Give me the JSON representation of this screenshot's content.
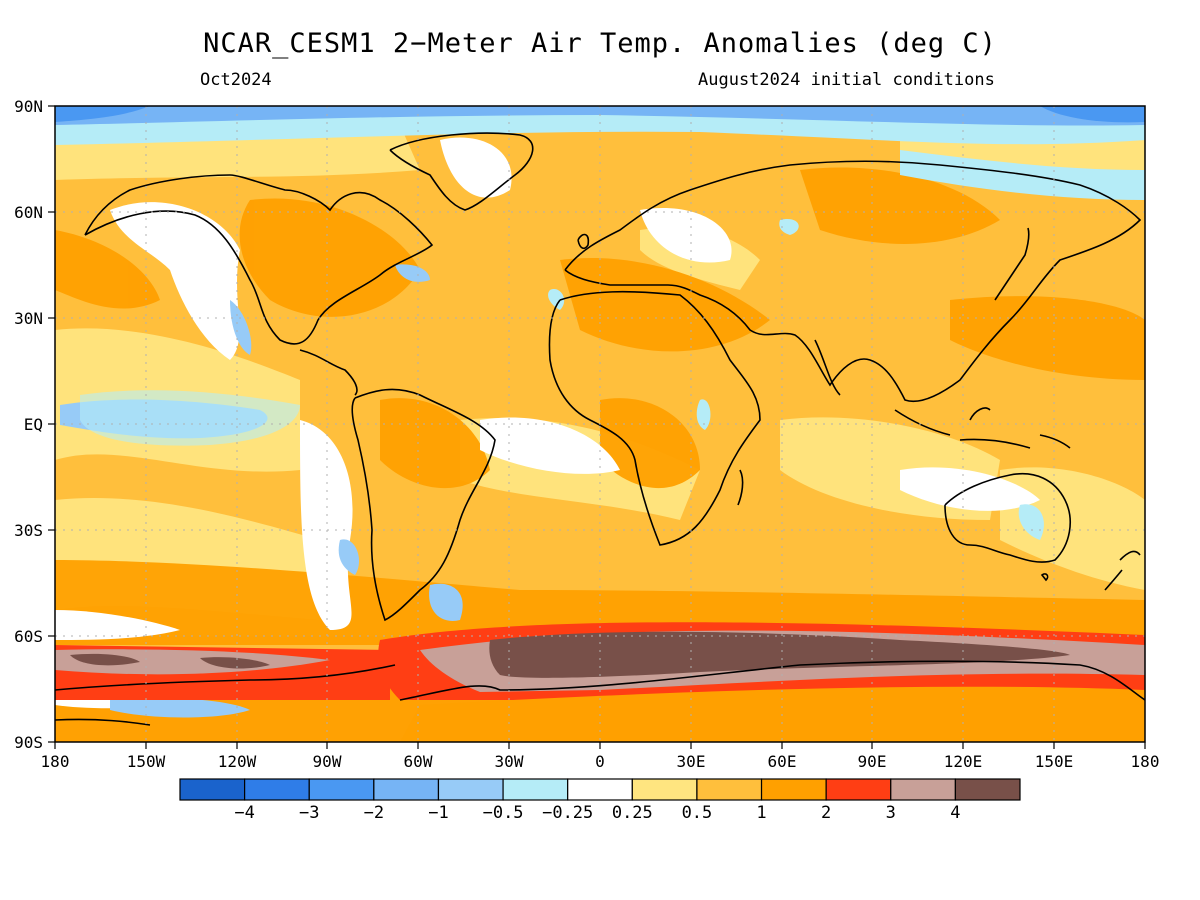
{
  "title": "NCAR_CESM1 2−Meter Air Temp. Anomalies (deg C)",
  "valid_month": "Oct2024",
  "initial_conditions": "August2024 initial conditions",
  "lat_labels": [
    "90N",
    "60N",
    "30N",
    "EQ",
    "30S",
    "60S",
    "90S"
  ],
  "lon_labels": [
    "180",
    "150W",
    "120W",
    "90W",
    "60W",
    "30W",
    "0",
    "30E",
    "60E",
    "90E",
    "120E",
    "150E",
    "180"
  ],
  "colorbar": {
    "labels": [
      "−4",
      "−3",
      "−2",
      "−1",
      "−0.5",
      "−0.25",
      "0.25",
      "0.5",
      "1",
      "2",
      "3",
      "4"
    ],
    "colors": [
      "#1a63cc",
      "#2f7de8",
      "#4a98f2",
      "#76b4f5",
      "#97cbf7",
      "#b5ecf7",
      "#ffffff",
      "#ffe580",
      "#ffbf3c",
      "#ffa000",
      "#ff3e14",
      "#c8a098",
      "#785049"
    ]
  }
}
